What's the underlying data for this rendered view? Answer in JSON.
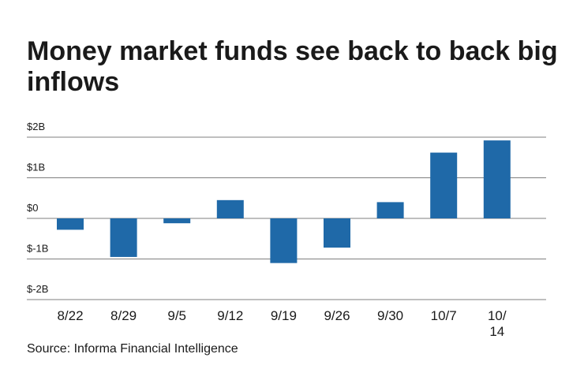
{
  "chart_data": {
    "type": "bar",
    "title": "Money market funds see back to back big inflows",
    "source": "Source: Informa Financial Intelligence",
    "categories": [
      [
        "8/22"
      ],
      [
        "8/29"
      ],
      [
        "9/5"
      ],
      [
        "9/12"
      ],
      [
        "9/19"
      ],
      [
        "9/26"
      ],
      [
        "9/30"
      ],
      [
        "10/7"
      ],
      [
        "10/",
        "14"
      ]
    ],
    "values": [
      -0.28,
      -0.95,
      -0.12,
      0.45,
      -1.1,
      -0.72,
      0.4,
      1.62,
      1.92
    ],
    "unit": "B",
    "ylim": [
      -2,
      2
    ],
    "yticks": [
      2,
      1,
      0,
      -1,
      -2
    ],
    "ytick_labels": [
      "$2B",
      "$1B",
      "$0",
      "$-1B",
      "$-2B"
    ],
    "xlabel": "",
    "ylabel": "",
    "grid": true,
    "legend": "none",
    "colors": {
      "bar": "#1f69a8",
      "grid": "#7f7f7f",
      "text": "#1a1a1a"
    }
  }
}
